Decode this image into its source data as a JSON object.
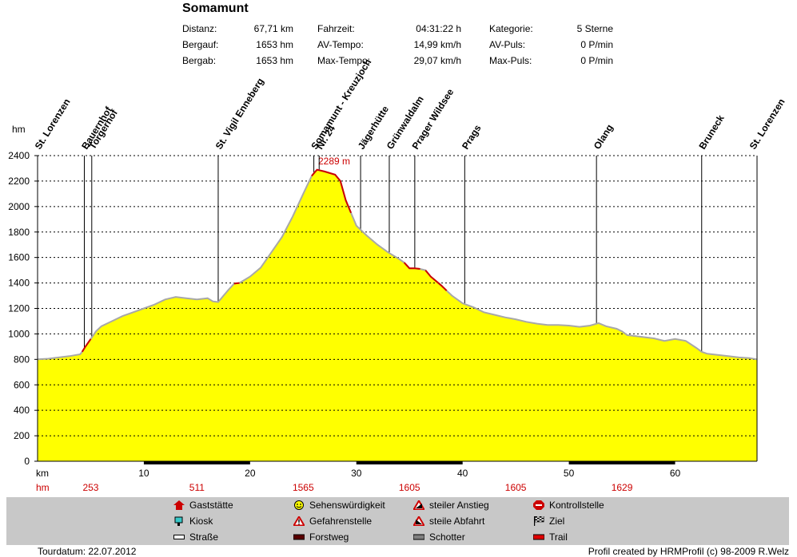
{
  "header": {
    "title": "Somamunt",
    "stats": [
      {
        "label": "Distanz:",
        "value": "67,71 km"
      },
      {
        "label": "Bergauf:",
        "value": "1653 hm"
      },
      {
        "label": "Bergab:",
        "value": "1653 hm"
      },
      {
        "label": "Fahrzeit:",
        "value": "04:31:22 h"
      },
      {
        "label": "AV-Tempo:",
        "value": "14,99 km/h"
      },
      {
        "label": "Max-Tempo:",
        "value": "29,07 km/h"
      },
      {
        "label": "Kategorie:",
        "value": "5 Sterne"
      },
      {
        "label": "AV-Puls:",
        "value": "0 P/min"
      },
      {
        "label": "Max-Puls:",
        "value": "0 P/min"
      }
    ]
  },
  "chart_data": {
    "type": "area",
    "ylabel": "hm",
    "xlabel": "km",
    "xlim": [
      0,
      67.71
    ],
    "ylim": [
      0,
      2400
    ],
    "yticks": [
      0,
      200,
      400,
      600,
      800,
      1000,
      1200,
      1400,
      1600,
      1800,
      2000,
      2200,
      2400
    ],
    "xticks": [
      10,
      20,
      30,
      40,
      50,
      60
    ],
    "peak_label": "2289 m",
    "peak_x": 26.3,
    "profile": [
      [
        0,
        800
      ],
      [
        1,
        805
      ],
      [
        2,
        815
      ],
      [
        3,
        825
      ],
      [
        4,
        840
      ],
      [
        4.2,
        860
      ],
      [
        4.5,
        900
      ],
      [
        5,
        960
      ],
      [
        5.5,
        1020
      ],
      [
        6,
        1060
      ],
      [
        7,
        1100
      ],
      [
        8,
        1140
      ],
      [
        9,
        1170
      ],
      [
        10,
        1200
      ],
      [
        11,
        1230
      ],
      [
        12,
        1270
      ],
      [
        13,
        1290
      ],
      [
        14,
        1280
      ],
      [
        15,
        1270
      ],
      [
        16,
        1280
      ],
      [
        16.5,
        1255
      ],
      [
        17,
        1250
      ],
      [
        17.5,
        1300
      ],
      [
        18,
        1350
      ],
      [
        18.5,
        1395
      ],
      [
        19,
        1400
      ],
      [
        20,
        1450
      ],
      [
        21,
        1520
      ],
      [
        22,
        1640
      ],
      [
        23,
        1760
      ],
      [
        24,
        1920
      ],
      [
        25,
        2100
      ],
      [
        25.8,
        2240
      ],
      [
        26.1,
        2270
      ],
      [
        26.3,
        2289
      ],
      [
        27,
        2275
      ],
      [
        28,
        2250
      ],
      [
        28.5,
        2200
      ],
      [
        29,
        2050
      ],
      [
        29.5,
        1950
      ],
      [
        30,
        1850
      ],
      [
        31,
        1770
      ],
      [
        32,
        1700
      ],
      [
        33,
        1640
      ],
      [
        34,
        1590
      ],
      [
        34.5,
        1560
      ],
      [
        35,
        1515
      ],
      [
        35.5,
        1515
      ],
      [
        36,
        1510
      ],
      [
        36.5,
        1500
      ],
      [
        37,
        1450
      ],
      [
        38,
        1380
      ],
      [
        38.5,
        1340
      ],
      [
        39,
        1300
      ],
      [
        40,
        1240
      ],
      [
        41,
        1210
      ],
      [
        42,
        1170
      ],
      [
        43,
        1150
      ],
      [
        44,
        1130
      ],
      [
        45,
        1115
      ],
      [
        46,
        1095
      ],
      [
        47,
        1080
      ],
      [
        48,
        1070
      ],
      [
        49,
        1070
      ],
      [
        50,
        1065
      ],
      [
        51,
        1055
      ],
      [
        52,
        1065
      ],
      [
        52.8,
        1085
      ],
      [
        53.5,
        1060
      ],
      [
        54.5,
        1040
      ],
      [
        55,
        1020
      ],
      [
        55.5,
        990
      ],
      [
        56,
        985
      ],
      [
        57,
        975
      ],
      [
        58,
        965
      ],
      [
        59,
        945
      ],
      [
        60,
        960
      ],
      [
        61,
        945
      ],
      [
        62,
        890
      ],
      [
        62.5,
        860
      ],
      [
        63,
        845
      ],
      [
        64,
        835
      ],
      [
        65,
        825
      ],
      [
        66,
        815
      ],
      [
        67,
        810
      ],
      [
        67.71,
        800
      ]
    ],
    "steep_segments": [
      [
        4.1,
        5.4
      ],
      [
        18.5,
        19.5
      ],
      [
        25.8,
        29.8
      ],
      [
        34.5,
        36
      ],
      [
        36.5,
        38.5
      ]
    ],
    "waypoints": [
      {
        "name": "St. Lorenzen",
        "x": 0
      },
      {
        "name": "Bauernhof",
        "x": 4.4
      },
      {
        "name": "Torgerhof",
        "x": 5.1
      },
      {
        "name": "St. Vigil Enneberg",
        "x": 17.0
      },
      {
        "name": "Somamunt - Kreuzjoch",
        "x": 26.0
      },
      {
        "name": "Nr. 24",
        "x": 26.5
      },
      {
        "name": "Jägerhütte",
        "x": 30.4
      },
      {
        "name": "Grünwaldalm",
        "x": 33.1
      },
      {
        "name": "Prager Wildsee",
        "x": 35.5
      },
      {
        "name": "Prags",
        "x": 40.2
      },
      {
        "name": "Olang",
        "x": 52.6
      },
      {
        "name": "Bruneck",
        "x": 62.5
      },
      {
        "name": "St. Lorenzen",
        "x": 67.71
      }
    ],
    "hm_row_label": "hm",
    "hm_values": [
      {
        "x": 5,
        "v": "253"
      },
      {
        "x": 15,
        "v": "511"
      },
      {
        "x": 25,
        "v": "1565"
      },
      {
        "x": 35,
        "v": "1605"
      },
      {
        "x": 45,
        "v": "1605"
      },
      {
        "x": 55,
        "v": "1629"
      }
    ],
    "surface_bars": [
      [
        10,
        20
      ],
      [
        30,
        40
      ],
      [
        50,
        60
      ]
    ],
    "colors": {
      "fill": "#ffff00",
      "grey_line": "#a8a8a8",
      "steep_line": "#cc0000",
      "hm_text": "#cc0000",
      "peak_text": "#cc0000"
    }
  },
  "legend": {
    "col1": [
      {
        "label": "Gaststätte",
        "icon": "house-icon"
      },
      {
        "label": "Kiosk",
        "icon": "kiosk-icon"
      },
      {
        "label": "Straße",
        "icon": "road-icon"
      }
    ],
    "col2": [
      {
        "label": "Sehenswürdigkeit",
        "icon": "smiley-icon"
      },
      {
        "label": "Gefahrenstelle",
        "icon": "warning-icon"
      },
      {
        "label": "Forstweg",
        "icon": "forest-road-icon"
      }
    ],
    "col3": [
      {
        "label": "steiler Anstieg",
        "icon": "steep-climb-icon"
      },
      {
        "label": "steile Abfahrt",
        "icon": "steep-descent-icon"
      },
      {
        "label": "Schotter",
        "icon": "gravel-icon"
      }
    ],
    "col4": [
      {
        "label": "Kontrollstelle",
        "icon": "stop-icon"
      },
      {
        "label": "Ziel",
        "icon": "finish-flag-icon"
      },
      {
        "label": "Trail",
        "icon": "trail-icon"
      }
    ]
  },
  "footer": {
    "date": "Tourdatum: 22.07.2012",
    "credit": "Profil created by HRMProfil (c) 98-2009 R.Welz"
  }
}
